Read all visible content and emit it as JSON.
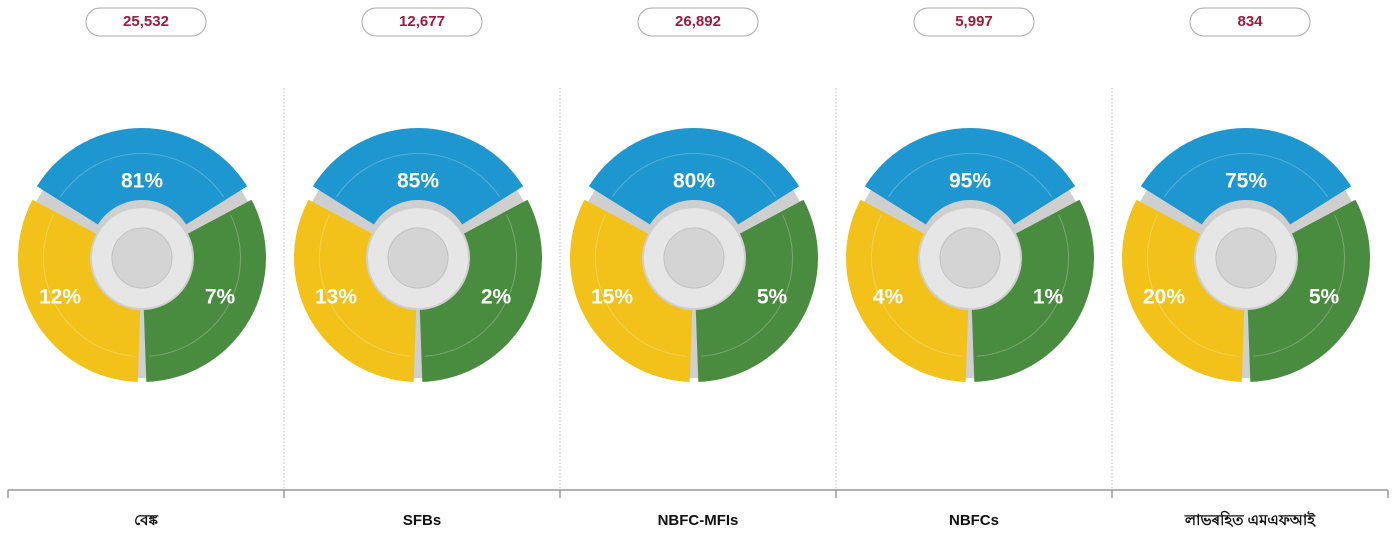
{
  "panels": [
    {
      "total": "25,532",
      "label": "বেঙ্ক",
      "segments": [
        {
          "value": "81%",
          "color": "#1e96cf"
        },
        {
          "value": "7%",
          "color": "#4a8c3f"
        },
        {
          "value": "12%",
          "color": "#f2c21b"
        }
      ]
    },
    {
      "total": "12,677",
      "label": "SFBs",
      "segments": [
        {
          "value": "85%",
          "color": "#1e96cf"
        },
        {
          "value": "2%",
          "color": "#4a8c3f"
        },
        {
          "value": "13%",
          "color": "#f2c21b"
        }
      ]
    },
    {
      "total": "26,892",
      "label": "NBFC-MFIs",
      "segments": [
        {
          "value": "80%",
          "color": "#1e96cf"
        },
        {
          "value": "5%",
          "color": "#4a8c3f"
        },
        {
          "value": "15%",
          "color": "#f2c21b"
        }
      ]
    },
    {
      "total": "5,997",
      "label": "NBFCs",
      "segments": [
        {
          "value": "95%",
          "color": "#1e96cf"
        },
        {
          "value": "1%",
          "color": "#4a8c3f"
        },
        {
          "value": "4%",
          "color": "#f2c21b"
        }
      ]
    },
    {
      "total": "834",
      "label": "লাভৰহিত এমএফআই",
      "segments": [
        {
          "value": "75%",
          "color": "#1e96cf"
        },
        {
          "value": "5%",
          "color": "#4a8c3f"
        },
        {
          "value": "20%",
          "color": "#f2c21b"
        }
      ]
    }
  ]
}
